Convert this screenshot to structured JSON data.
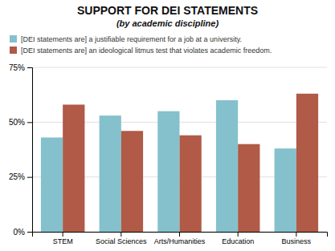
{
  "chart_data": {
    "type": "bar",
    "title": "SUPPORT FOR DEI STATEMENTS",
    "subtitle": "(by academic discipline)",
    "categories": [
      "STEM",
      "Social Sciences",
      "Arts/Humanities",
      "Education",
      "Business"
    ],
    "series": [
      {
        "name": "[DEI statements are] a justifiable requirement for a job at a university.",
        "color": "#85C1CC",
        "values": [
          0.43,
          0.53,
          0.55,
          0.6,
          0.38
        ]
      },
      {
        "name": "[DEI statements are] an ideological litmus test that violates academic freedom.",
        "color": "#B05A47",
        "values": [
          0.58,
          0.46,
          0.44,
          0.4,
          0.63
        ]
      }
    ],
    "ylim": [
      0,
      0.75
    ],
    "yticks": [
      {
        "value": 0.0,
        "label": "0%"
      },
      {
        "value": 0.25,
        "label": "25%"
      },
      {
        "value": 0.5,
        "label": "50%"
      },
      {
        "value": 0.75,
        "label": "75%"
      }
    ],
    "grid": true,
    "legend": "top"
  }
}
